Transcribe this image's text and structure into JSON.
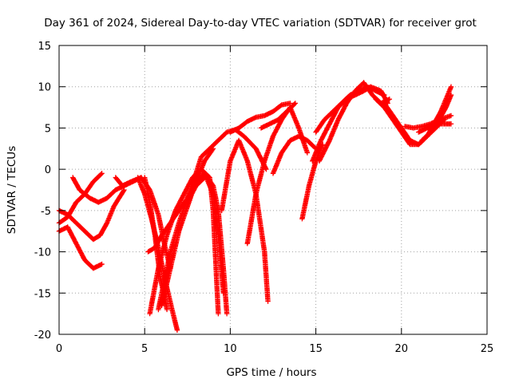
{
  "chart_data": {
    "type": "scatter",
    "title": "Day 361 of 2024, Sidereal Day-to-day VTEC variation (SDTVAR) for receiver grot",
    "xlabel": "GPS time / hours",
    "ylabel": "SDTVAR / TECUs",
    "xlim": [
      0,
      25
    ],
    "ylim": [
      -20,
      15
    ],
    "xticks": [
      0,
      5,
      10,
      15,
      20,
      25
    ],
    "yticks": [
      -20,
      -15,
      -10,
      -5,
      0,
      5,
      10,
      15
    ],
    "grid": true,
    "legend": "none",
    "marker": "plus",
    "series_color": "#ff0000",
    "series": [
      {
        "x": [
          0.0,
          0.5,
          1.0,
          1.5,
          2.0,
          2.5
        ],
        "y": [
          -7.5,
          -7.0,
          -9.0,
          -11.0,
          -12.0,
          -11.5
        ]
      },
      {
        "x": [
          0.0,
          0.5,
          1.0,
          1.5,
          2.0,
          2.4,
          2.8,
          3.2,
          3.8
        ],
        "y": [
          -5.0,
          -5.5,
          -6.5,
          -7.5,
          -8.5,
          -8.0,
          -6.5,
          -4.5,
          -2.5
        ]
      },
      {
        "x": [
          0.0,
          0.5,
          1.0,
          1.5,
          2.0,
          2.5
        ],
        "y": [
          -6.5,
          -5.8,
          -4.0,
          -3.0,
          -1.5,
          -0.5
        ]
      },
      {
        "x": [
          0.8,
          1.2,
          1.8,
          2.3,
          2.8,
          3.3,
          3.8,
          4.3,
          4.8
        ],
        "y": [
          -1.0,
          -2.5,
          -3.5,
          -4.0,
          -3.5,
          -2.5,
          -2.0,
          -1.5,
          -1.0
        ]
      },
      {
        "x": [
          3.3,
          3.7,
          4.2,
          4.8,
          5.3,
          5.8,
          6.2,
          6.5
        ],
        "y": [
          -1.0,
          -2.0,
          -1.5,
          -1.0,
          -2.5,
          -5.5,
          -9.5,
          -12.0
        ]
      },
      {
        "x": [
          4.6,
          5.0,
          5.4,
          5.8,
          6.2,
          6.6,
          6.9
        ],
        "y": [
          -1.0,
          -3.0,
          -6.0,
          -9.5,
          -13.5,
          -17.0,
          -19.5
        ]
      },
      {
        "x": [
          5.0,
          5.3,
          5.6,
          5.9,
          6.3
        ],
        "y": [
          -1.0,
          -4.0,
          -8.0,
          -13.0,
          -17.0
        ]
      },
      {
        "x": [
          5.2,
          5.6,
          6.0,
          6.5,
          7.0,
          7.5,
          8.0,
          8.5
        ],
        "y": [
          -10.0,
          -9.5,
          -8.0,
          -6.5,
          -5.0,
          -3.5,
          -2.0,
          -1.0
        ]
      },
      {
        "x": [
          5.8,
          6.5,
          7.0,
          7.5,
          8.0,
          8.3,
          8.8,
          9.3,
          9.8,
          10.3,
          10.8,
          11.5,
          12.1
        ],
        "y": [
          -17.0,
          -10.0,
          -6.5,
          -3.5,
          -0.5,
          1.5,
          2.5,
          3.5,
          4.5,
          4.8,
          4.0,
          2.5,
          0.0
        ]
      },
      {
        "x": [
          6.0,
          6.5,
          7.0,
          7.5,
          8.0,
          8.5,
          9.0
        ],
        "y": [
          -16.5,
          -12.0,
          -7.5,
          -4.5,
          -1.5,
          1.0,
          2.5
        ]
      },
      {
        "x": [
          5.3,
          5.8,
          6.3,
          6.8,
          7.3,
          7.8,
          8.3,
          8.8,
          9.0,
          9.3
        ],
        "y": [
          -17.5,
          -12.0,
          -8.0,
          -5.0,
          -3.0,
          -1.0,
          0.0,
          -1.0,
          -5.0,
          -17.5
        ]
      },
      {
        "x": [
          7.5,
          8.0,
          8.5,
          9.0,
          9.3,
          9.6,
          9.8
        ],
        "y": [
          -4.0,
          -2.0,
          -0.5,
          -2.0,
          -5.0,
          -12.0,
          -17.5
        ]
      },
      {
        "x": [
          7.5,
          8.0,
          8.5,
          9.0,
          9.3,
          9.6
        ],
        "y": [
          -3.5,
          -1.5,
          -0.5,
          -3.0,
          -8.0,
          -15.0
        ]
      },
      {
        "x": [
          9.5,
          10.0,
          10.5,
          11.0,
          11.5,
          12.0,
          12.2
        ],
        "y": [
          -5.0,
          1.0,
          3.5,
          1.0,
          -3.0,
          -10.0,
          -16.0
        ]
      },
      {
        "x": [
          11.0,
          11.5,
          12.0,
          12.5,
          13.0,
          13.5,
          14.0,
          14.5
        ],
        "y": [
          -9.0,
          -3.0,
          1.0,
          4.0,
          6.0,
          7.5,
          5.0,
          2.0
        ]
      },
      {
        "x": [
          10.0,
          10.5,
          11.0,
          11.5,
          12.0,
          12.5,
          13.0,
          13.5
        ],
        "y": [
          4.5,
          5.0,
          5.8,
          6.3,
          6.5,
          7.0,
          7.8,
          8.0
        ]
      },
      {
        "x": [
          11.8,
          12.3,
          12.8,
          13.3,
          13.8
        ],
        "y": [
          5.0,
          5.5,
          6.0,
          7.0,
          8.0
        ]
      },
      {
        "x": [
          12.5,
          13.0,
          13.5,
          14.0,
          14.5,
          15.0
        ],
        "y": [
          -0.5,
          2.0,
          3.5,
          4.0,
          3.5,
          2.5
        ]
      },
      {
        "x": [
          14.2,
          14.6,
          15.0,
          15.4
        ],
        "y": [
          -6.0,
          -2.0,
          1.0,
          3.0
        ]
      },
      {
        "x": [
          14.8,
          15.3,
          15.8,
          16.3,
          16.8,
          17.3,
          17.8,
          18.2,
          18.8,
          19.2
        ],
        "y": [
          1.0,
          3.5,
          5.5,
          7.5,
          8.5,
          9.0,
          9.5,
          10.0,
          9.5,
          8.0
        ]
      },
      {
        "x": [
          15.0,
          15.5,
          16.0,
          16.5,
          17.0,
          17.5,
          18.0,
          18.5,
          19.0
        ],
        "y": [
          4.5,
          6.0,
          7.0,
          8.0,
          9.0,
          9.5,
          10.0,
          9.5,
          9.0
        ]
      },
      {
        "x": [
          15.2,
          15.8,
          16.3,
          16.8,
          17.3,
          17.8,
          18.3,
          18.8,
          19.3
        ],
        "y": [
          1.0,
          3.5,
          6.0,
          8.0,
          9.5,
          10.5,
          9.0,
          8.0,
          8.5
        ]
      },
      {
        "x": [
          18.5,
          19.0,
          19.5,
          20.0,
          20.5,
          21.0,
          21.5
        ],
        "y": [
          8.5,
          7.5,
          6.0,
          4.5,
          3.0,
          3.0,
          4.0
        ]
      },
      {
        "x": [
          19.0,
          19.5,
          20.0,
          20.5,
          21.0,
          21.5,
          22.0,
          22.5
        ],
        "y": [
          8.0,
          6.5,
          5.0,
          3.5,
          3.0,
          4.0,
          5.0,
          6.0
        ]
      },
      {
        "x": [
          20.2,
          20.7,
          21.2,
          21.7,
          22.2,
          22.9
        ],
        "y": [
          5.2,
          5.0,
          5.2,
          5.5,
          6.0,
          6.5
        ]
      },
      {
        "x": [
          21.5,
          21.9,
          22.3,
          22.7,
          22.9
        ],
        "y": [
          4.0,
          5.5,
          7.0,
          9.0,
          10.0
        ]
      },
      {
        "x": [
          21.2,
          21.7,
          22.2,
          22.6,
          22.9
        ],
        "y": [
          3.5,
          4.5,
          6.0,
          7.5,
          9.0
        ]
      },
      {
        "x": [
          21.0,
          21.5,
          22.0,
          22.5,
          22.9
        ],
        "y": [
          4.5,
          5.0,
          5.5,
          5.5,
          5.5
        ]
      }
    ]
  }
}
